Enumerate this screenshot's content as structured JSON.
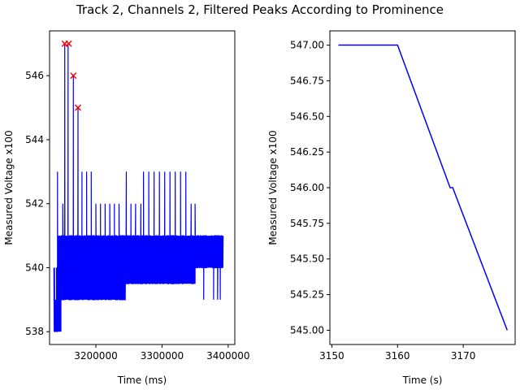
{
  "figure": {
    "title": "Track 2, Channels 2, Filtered Peaks According to Prominence"
  },
  "chart_data": [
    {
      "type": "line",
      "xlabel": "Time (ms)",
      "ylabel": "Measured Voltage x100",
      "xlim": [
        3130000,
        3410000
      ],
      "ylim": [
        537.6,
        547.4
      ],
      "xticks": [
        3200000,
        3300000,
        3400000
      ],
      "xtick_labels": [
        "3200000",
        "3300000",
        "3400000"
      ],
      "yticks": [
        538,
        540,
        542,
        544,
        546
      ],
      "ytick_labels": [
        "538",
        "540",
        "542",
        "544",
        "546"
      ],
      "grid": false,
      "series": [
        {
          "color": "#0000ff",
          "style": "dense oscillating signal",
          "segments": [
            {
              "x_start": 3137000,
              "x_end": 3147000,
              "low": 538,
              "high": 539
            },
            {
              "x_start": 3143000,
              "x_end": 3180000,
              "low": 539,
              "high": 541
            },
            {
              "x_start": 3180000,
              "x_end": 3245000,
              "low": 539,
              "high": 541
            },
            {
              "x_start": 3245000,
              "x_end": 3350000,
              "low": 539.5,
              "high": 541
            },
            {
              "x_start": 3350000,
              "x_end": 3392000,
              "low": 540,
              "high": 541
            }
          ],
          "spikes": [
            {
              "x": 3142000,
              "y": 543
            },
            {
              "x": 3150000,
              "y": 542
            },
            {
              "x": 3153000,
              "y": 547
            },
            {
              "x": 3158000,
              "y": 547
            },
            {
              "x": 3166000,
              "y": 546
            },
            {
              "x": 3173000,
              "y": 545
            },
            {
              "x": 3179000,
              "y": 543
            },
            {
              "x": 3186000,
              "y": 543
            },
            {
              "x": 3193000,
              "y": 543
            },
            {
              "x": 3200000,
              "y": 542
            },
            {
              "x": 3207000,
              "y": 542
            },
            {
              "x": 3214000,
              "y": 542
            },
            {
              "x": 3221000,
              "y": 542
            },
            {
              "x": 3228000,
              "y": 542
            },
            {
              "x": 3235000,
              "y": 542
            },
            {
              "x": 3246000,
              "y": 543
            },
            {
              "x": 3253000,
              "y": 542
            },
            {
              "x": 3260000,
              "y": 542
            },
            {
              "x": 3268000,
              "y": 542
            },
            {
              "x": 3272000,
              "y": 543
            },
            {
              "x": 3280000,
              "y": 543
            },
            {
              "x": 3288000,
              "y": 543
            },
            {
              "x": 3296000,
              "y": 543
            },
            {
              "x": 3304000,
              "y": 543
            },
            {
              "x": 3312000,
              "y": 543
            },
            {
              "x": 3320000,
              "y": 543
            },
            {
              "x": 3328000,
              "y": 543
            },
            {
              "x": 3336000,
              "y": 543
            },
            {
              "x": 3344000,
              "y": 542
            },
            {
              "x": 3350000,
              "y": 542
            }
          ],
          "dips": [
            {
              "x": 3137000,
              "y": 538
            },
            {
              "x": 3141000,
              "y": 538
            },
            {
              "x": 3146000,
              "y": 538
            },
            {
              "x": 3363000,
              "y": 539
            },
            {
              "x": 3378000,
              "y": 539
            },
            {
              "x": 3384000,
              "y": 539
            },
            {
              "x": 3388000,
              "y": 539
            }
          ]
        }
      ],
      "peaks": [
        {
          "x": 3153000,
          "y": 547
        },
        {
          "x": 3159000,
          "y": 547
        },
        {
          "x": 3166000,
          "y": 546
        },
        {
          "x": 3173000,
          "y": 545
        }
      ],
      "peak_color": "#ff0000"
    },
    {
      "type": "line",
      "xlabel": "Time (s)",
      "ylabel": "Measured Voltage x100",
      "xlim": [
        3149.7,
        3177.9
      ],
      "ylim": [
        544.9,
        547.1
      ],
      "xticks": [
        3150,
        3160,
        3170
      ],
      "xtick_labels": [
        "3150",
        "3160",
        "3170"
      ],
      "yticks": [
        545.0,
        545.25,
        545.5,
        545.75,
        546.0,
        546.25,
        546.5,
        546.75,
        547.0
      ],
      "ytick_labels": [
        "545.00",
        "545.25",
        "545.50",
        "545.75",
        "546.00",
        "546.25",
        "546.50",
        "546.75",
        "547.00"
      ],
      "grid": false,
      "series": [
        {
          "color": "#0000ff",
          "x": [
            3151.0,
            3160.0,
            3168.0,
            3168.4,
            3176.7
          ],
          "y": [
            547.0,
            547.0,
            546.0,
            546.0,
            545.0
          ]
        }
      ]
    }
  ]
}
